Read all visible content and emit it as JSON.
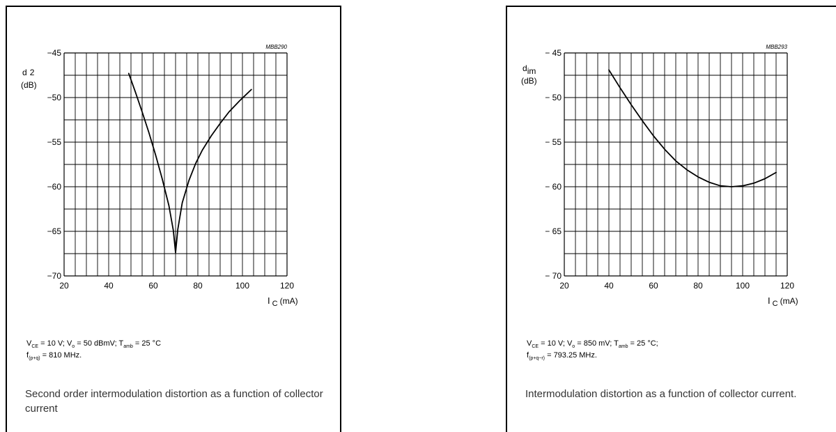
{
  "chart_data": [
    {
      "type": "line",
      "code": "MBB290",
      "ylabel_main": "d",
      "ylabel_sub": "2",
      "ylabel_unit": "(dB)",
      "xlabel_main": "I",
      "xlabel_sub": "C",
      "xlabel_unit": "(mA)",
      "xlim": [
        20,
        120
      ],
      "ylim": [
        -70,
        -45
      ],
      "x_ticks": [
        20,
        40,
        60,
        80,
        100,
        120
      ],
      "y_ticks": [
        -45,
        -50,
        -55,
        -60,
        -65,
        -70
      ],
      "y_tick_labels": [
        "−45",
        "−50",
        "−55",
        "−60",
        "−65",
        "−70"
      ],
      "grid": true,
      "series": [
        {
          "x": [
            49,
            52,
            55,
            58,
            61,
            64,
            67,
            69,
            70,
            71,
            73,
            76,
            79,
            82,
            86,
            90,
            94,
            99,
            104
          ],
          "y": [
            -47.3,
            -49.4,
            -51.6,
            -53.9,
            -56.4,
            -59.1,
            -62.1,
            -64.9,
            -67.4,
            -64.8,
            -61.8,
            -59.3,
            -57.4,
            -55.9,
            -54.3,
            -52.9,
            -51.6,
            -50.3,
            -49.1
          ]
        }
      ],
      "conditions": {
        "line1": {
          "p1": "V",
          "s1": "CE",
          "p2": " = 10 V; V",
          "s2": "o",
          "p3": " = 50 dBmV; T",
          "s3": "amb",
          "p4": " = 25 °C"
        },
        "line2": {
          "p1": "f",
          "s1": "(p+q)",
          "p2": " = 810 MHz."
        }
      },
      "caption": "Second order intermodulation distortion as a function of collector current"
    },
    {
      "type": "line",
      "code": "MBB293",
      "ylabel_main": "d",
      "ylabel_sub": "im",
      "ylabel_unit": "(dB)",
      "xlabel_main": "I",
      "xlabel_sub": "C",
      "xlabel_unit": "(mA)",
      "xlim": [
        20,
        120
      ],
      "ylim": [
        -70,
        -45
      ],
      "x_ticks": [
        20,
        40,
        60,
        80,
        100,
        120
      ],
      "y_ticks": [
        -45,
        -50,
        -55,
        -60,
        -65,
        -70
      ],
      "y_tick_labels": [
        "− 45",
        "− 50",
        "− 55",
        "− 60",
        "− 65",
        "− 70"
      ],
      "grid": true,
      "series": [
        {
          "x": [
            40,
            45,
            50,
            55,
            60,
            65,
            70,
            75,
            80,
            85,
            90,
            95,
            100,
            105,
            110,
            115
          ],
          "y": [
            -46.9,
            -48.9,
            -50.8,
            -52.6,
            -54.3,
            -55.8,
            -57.1,
            -58.1,
            -58.9,
            -59.5,
            -59.9,
            -60.0,
            -59.9,
            -59.6,
            -59.1,
            -58.4
          ]
        }
      ],
      "conditions": {
        "line1": {
          "p1": "V",
          "s1": "CE",
          "p2": " = 10 V; V",
          "s2": "o",
          "p3": " = 850 mV; T",
          "s3": "amb",
          "p4": " = 25 °C;"
        },
        "line2": {
          "p1": "f",
          "s1": "(p+q−r)",
          "p2": " = 793.25 MHz."
        }
      },
      "caption": "Intermodulation distortion as a function of collector current."
    }
  ]
}
